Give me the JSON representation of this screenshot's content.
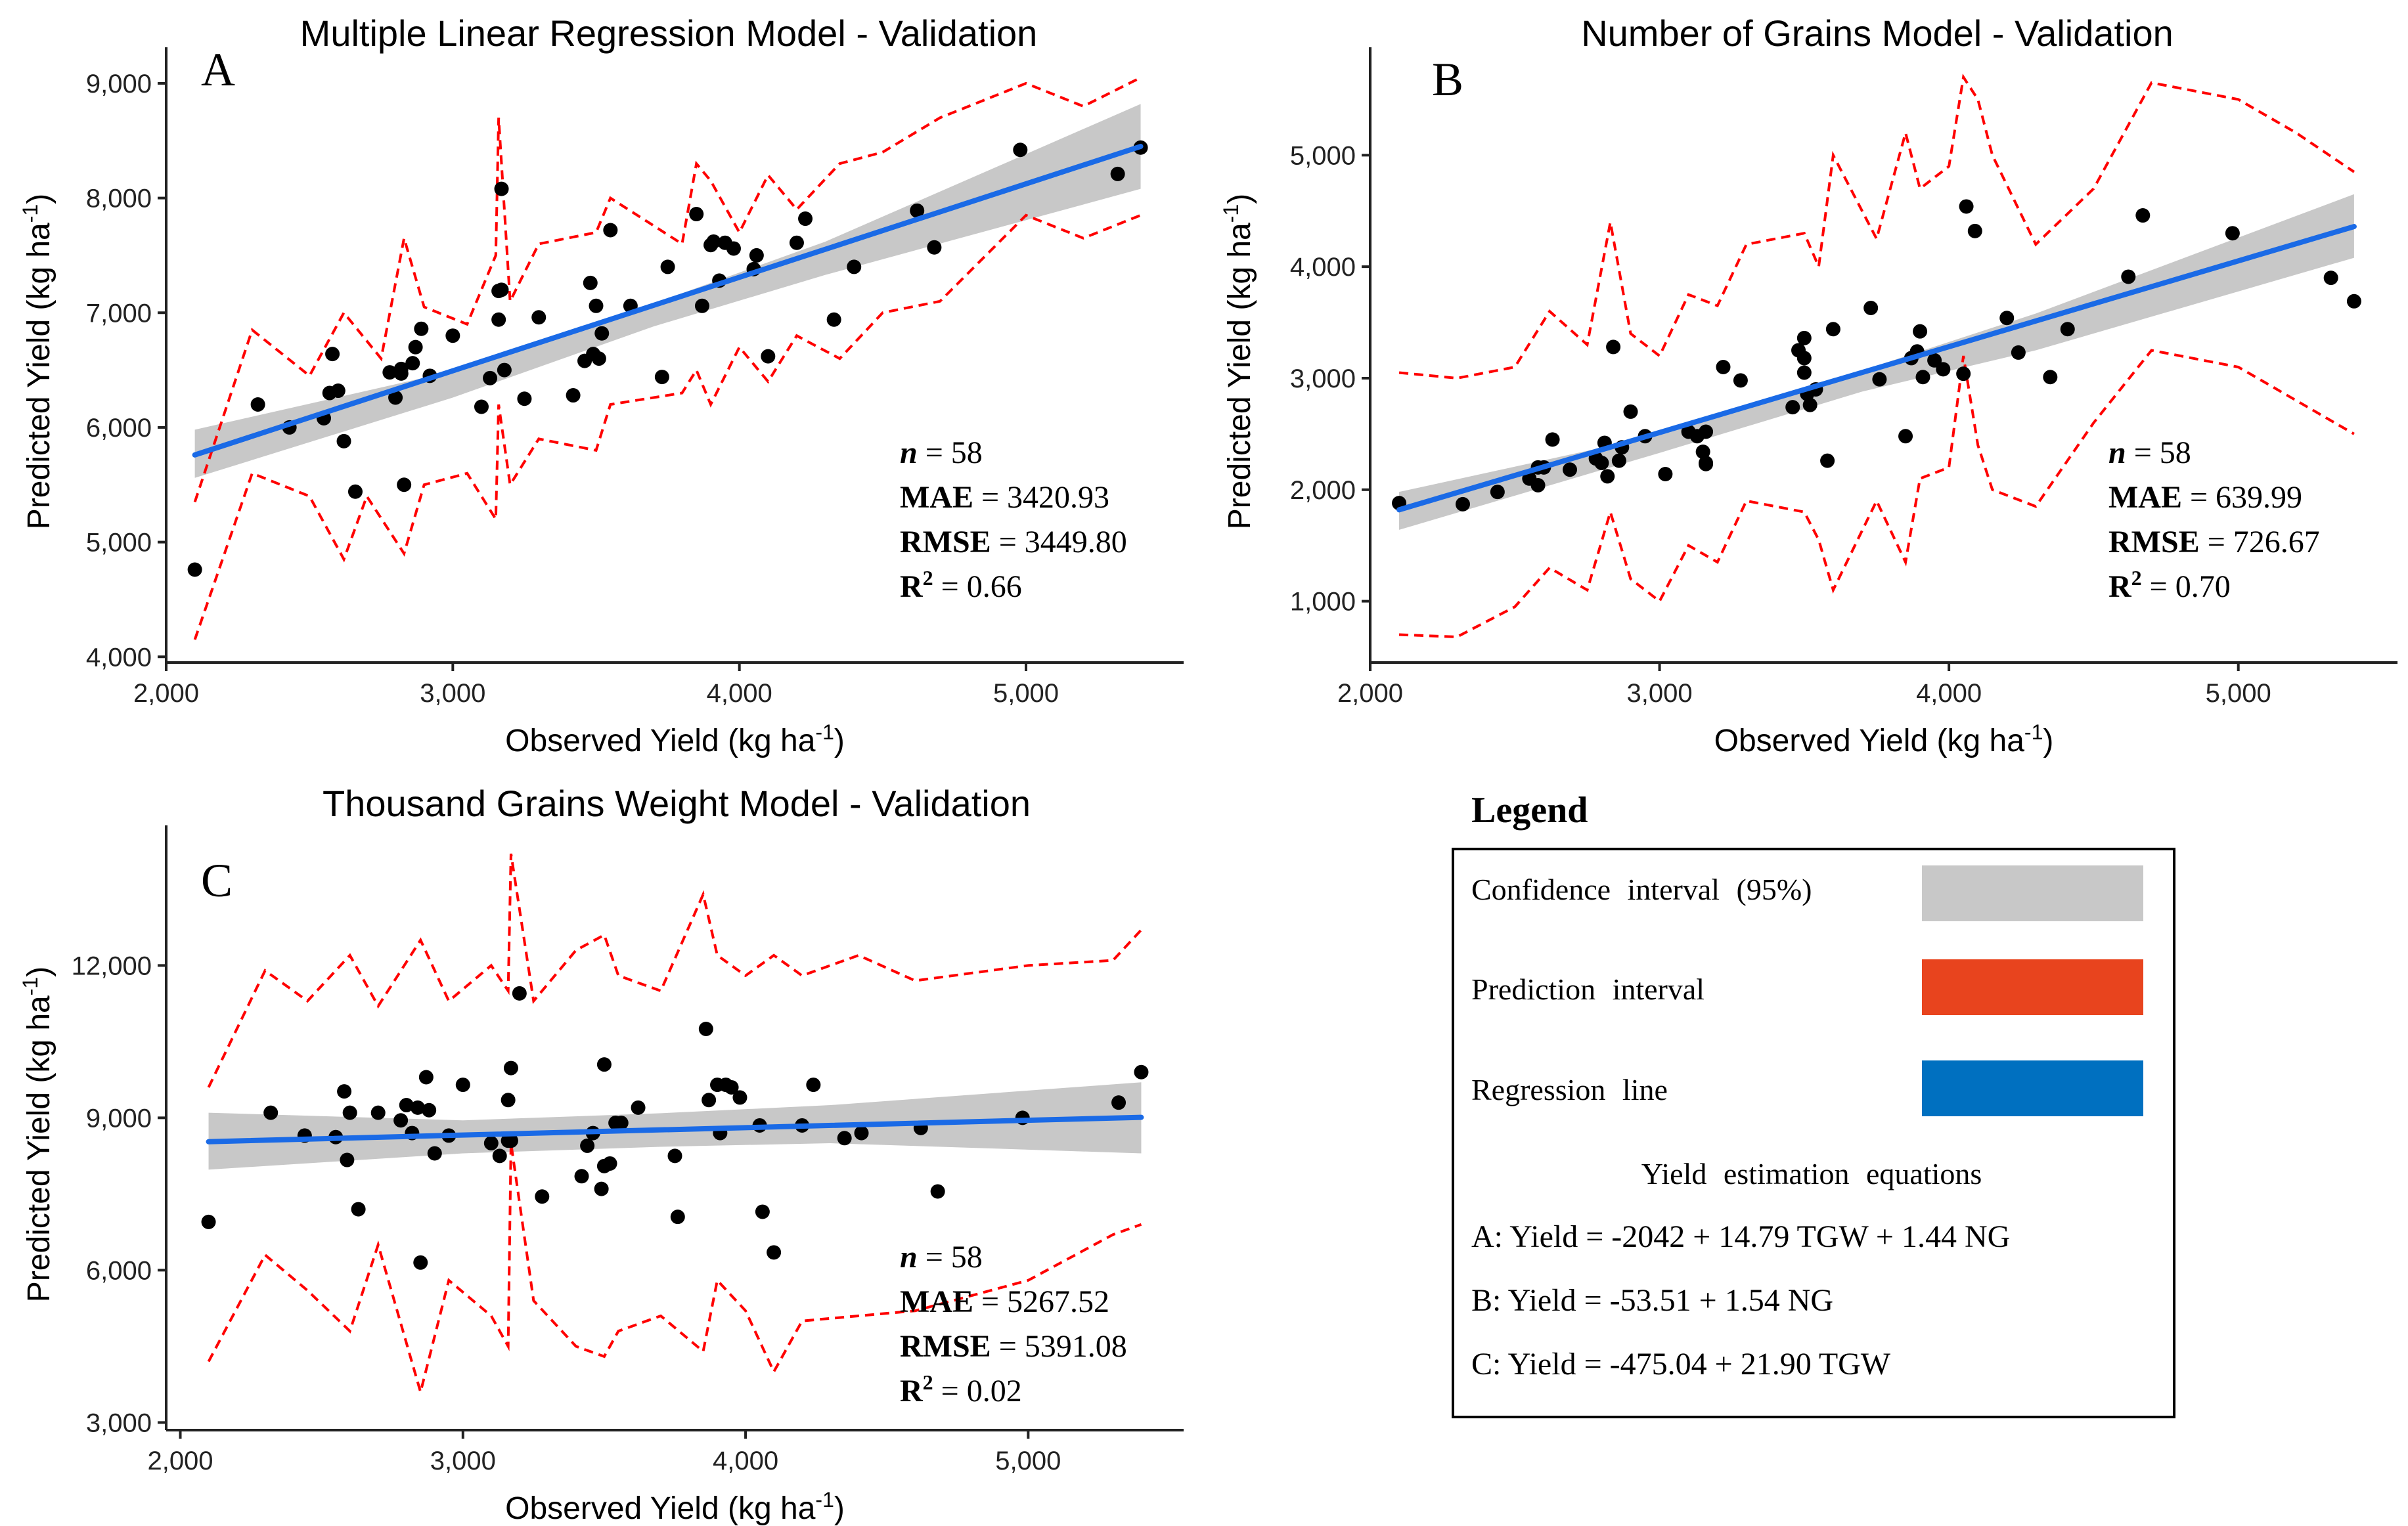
{
  "colors": {
    "confidence": "#c8c8c8",
    "prediction": "#ff0000",
    "prediction_swatch": "#e8441e",
    "regression": "#1a6ae6",
    "regression_swatch": "#0070c0",
    "points": "#000000",
    "axis": "#222222"
  },
  "chart_data": [
    {
      "type": "scatter",
      "panel_letter": "A",
      "title": "Multiple Linear Regression Model - Validation",
      "xlabel": "Observed Yield (kg ha",
      "xlabel_sup": "-1",
      "xlabel_end": ")",
      "ylabel": "Predicted Yield (kg ha",
      "ylabel_sup": "-1",
      "ylabel_end": ")",
      "xlim": [
        2000,
        5550
      ],
      "ylim": [
        3950,
        9200
      ],
      "xticks": [
        2000,
        3000,
        4000,
        5000
      ],
      "xtick_labels": [
        "2,000",
        "3,000",
        "4,000",
        "5,000"
      ],
      "yticks": [
        4000,
        5000,
        6000,
        7000,
        8000,
        9000
      ],
      "ytick_labels": [
        "4,000",
        "5,000",
        "6,000",
        "7,000",
        "8,000",
        "9,000"
      ],
      "regression": {
        "x": [
          2100,
          5400
        ],
        "y": [
          5760,
          8450
        ]
      },
      "ci_band": {
        "x": [
          2100,
          3000,
          3700,
          4300,
          5400
        ],
        "lower": [
          5560,
          6260,
          6880,
          7330,
          8080
        ],
        "upper": [
          5980,
          6490,
          7080,
          7620,
          8820
        ]
      },
      "pi_upper": {
        "x": [
          2100,
          2300,
          2500,
          2620,
          2750,
          2830,
          2900,
          3050,
          3150,
          3160,
          3200,
          3300,
          3500,
          3550,
          3800,
          3850,
          3900,
          4000,
          4100,
          4200,
          4350,
          4500,
          4700,
          5000,
          5200,
          5400
        ],
        "y": [
          5350,
          6850,
          6450,
          7000,
          6600,
          7650,
          7050,
          6900,
          7500,
          8700,
          7100,
          7600,
          7700,
          8000,
          7600,
          8300,
          8150,
          7700,
          8200,
          7900,
          8300,
          8400,
          8700,
          9000,
          8800,
          9050
        ]
      },
      "pi_lower": {
        "x": [
          2100,
          2300,
          2500,
          2620,
          2700,
          2830,
          2900,
          3050,
          3150,
          3160,
          3200,
          3300,
          3500,
          3550,
          3800,
          3850,
          3900,
          4000,
          4100,
          4200,
          4350,
          4500,
          4700,
          5000,
          5200,
          5400
        ],
        "y": [
          4150,
          5600,
          5400,
          4850,
          5400,
          4900,
          5500,
          5600,
          5200,
          6200,
          5500,
          5900,
          5800,
          6200,
          6300,
          6500,
          6200,
          6700,
          6400,
          6800,
          6600,
          7000,
          7100,
          7850,
          7650,
          7850
        ]
      },
      "points": {
        "x": [
          2100,
          2320,
          2430,
          2550,
          2580,
          2600,
          2620,
          2660,
          2780,
          2800,
          2820,
          2830,
          2860,
          2870,
          2890,
          2920,
          3000,
          3100,
          3130,
          3160,
          3160,
          3170,
          3180,
          3250,
          3300,
          3420,
          3460,
          3480,
          3490,
          3500,
          3520,
          3550,
          3620,
          3730,
          3750,
          3850,
          3870,
          3900,
          3910,
          3950,
          3980,
          4050,
          4060,
          4100,
          4200,
          4230,
          4330,
          4400,
          4620,
          4680,
          4980,
          5320,
          5400,
          2570,
          2820,
          3510,
          3170,
          3930
        ],
        "y": [
          4760,
          6200,
          6000,
          6080,
          6640,
          6320,
          5880,
          5440,
          6480,
          6260,
          6470,
          5500,
          6560,
          6700,
          6860,
          6450,
          6800,
          6180,
          6430,
          6940,
          7190,
          8080,
          6500,
          6250,
          6960,
          6280,
          6580,
          7260,
          6640,
          7060,
          6820,
          7720,
          7060,
          6440,
          7400,
          7860,
          7060,
          7590,
          7620,
          7610,
          7560,
          7380,
          7500,
          6620,
          7610,
          7820,
          6940,
          7400,
          7890,
          7570,
          8420,
          8210,
          8440,
          6300,
          6510,
          6600,
          7200,
          7280
        ]
      },
      "stats": {
        "n": "58",
        "mae": "3420.93",
        "rmse": "3449.80",
        "r2": "0.66"
      }
    },
    {
      "type": "scatter",
      "panel_letter": "B",
      "title": "Number of Grains Model - Validation",
      "xlabel": "Observed Yield (kg ha",
      "xlabel_sup": "-1",
      "xlabel_end": ")",
      "ylabel": "Predicted Yield (kg ha",
      "ylabel_sup": "-1",
      "ylabel_end": ")",
      "xlim": [
        2000,
        5550
      ],
      "ylim": [
        450,
        5850
      ],
      "xticks": [
        2000,
        3000,
        4000,
        5000
      ],
      "xtick_labels": [
        "2,000",
        "3,000",
        "4,000",
        "5,000"
      ],
      "yticks": [
        1000,
        2000,
        3000,
        4000,
        5000
      ],
      "ytick_labels": [
        "1,000",
        "2,000",
        "3,000",
        "4,000",
        "5,000"
      ],
      "regression": {
        "x": [
          2100,
          5400
        ],
        "y": [
          1820,
          4360
        ]
      },
      "ci_band": {
        "x": [
          2100,
          3000,
          3700,
          4300,
          5400
        ],
        "lower": [
          1640,
          2330,
          2880,
          3250,
          4080
        ],
        "upper": [
          1980,
          2490,
          3070,
          3580,
          4650
        ]
      },
      "pi_upper": {
        "x": [
          2100,
          2300,
          2500,
          2620,
          2750,
          2830,
          2900,
          3000,
          3100,
          3200,
          3300,
          3500,
          3550,
          3600,
          3750,
          3850,
          3900,
          4000,
          4050,
          4100,
          4150,
          4300,
          4500,
          4700,
          5000,
          5200,
          5400
        ],
        "y": [
          3050,
          3000,
          3100,
          3600,
          3300,
          4400,
          3400,
          3200,
          3750,
          3650,
          4200,
          4300,
          4000,
          5000,
          4250,
          5200,
          4700,
          4900,
          5700,
          5500,
          5000,
          4200,
          4700,
          5650,
          5500,
          5200,
          4850
        ]
      },
      "pi_lower": {
        "x": [
          2100,
          2300,
          2500,
          2620,
          2750,
          2830,
          2900,
          3000,
          3100,
          3200,
          3300,
          3500,
          3550,
          3600,
          3750,
          3850,
          3900,
          4000,
          4050,
          4100,
          4150,
          4300,
          4500,
          4700,
          5000,
          5200,
          5400
        ],
        "y": [
          700,
          680,
          950,
          1300,
          1100,
          1800,
          1200,
          1000,
          1500,
          1350,
          1900,
          1800,
          1550,
          1100,
          1900,
          1350,
          2100,
          2200,
          3200,
          2400,
          2000,
          1850,
          2600,
          3250,
          3100,
          2800,
          2500
        ]
      },
      "points": {
        "x": [
          2100,
          2320,
          2440,
          2550,
          2580,
          2600,
          2630,
          2690,
          2780,
          2800,
          2820,
          2840,
          2860,
          2870,
          2900,
          2950,
          3020,
          3100,
          3130,
          3150,
          3160,
          3160,
          3220,
          3280,
          3460,
          3480,
          3500,
          3500,
          3510,
          3520,
          3580,
          3600,
          3730,
          3760,
          3850,
          3870,
          3900,
          3910,
          3950,
          3980,
          4050,
          4060,
          4090,
          4200,
          4240,
          4350,
          4410,
          4620,
          4670,
          4980,
          5320,
          5400,
          2580,
          2810,
          3160,
          3540,
          3890,
          3500
        ],
        "y": [
          1880,
          1870,
          1980,
          2100,
          2040,
          2200,
          2450,
          2180,
          2280,
          2240,
          2120,
          3280,
          2260,
          2380,
          2700,
          2480,
          2140,
          2520,
          2480,
          2340,
          2520,
          2230,
          3100,
          2980,
          2740,
          3250,
          3180,
          3360,
          2860,
          2760,
          2260,
          3440,
          3630,
          2990,
          2480,
          3180,
          3420,
          3010,
          3160,
          3080,
          3040,
          4540,
          4320,
          3540,
          3230,
          3010,
          3440,
          3910,
          4460,
          4300,
          3900,
          3690,
          2200,
          2420,
          2240,
          2900,
          3240,
          3050
        ]
      },
      "stats": {
        "n": "58",
        "mae": "639.99",
        "rmse": "726.67",
        "r2": "0.70"
      }
    },
    {
      "type": "scatter",
      "panel_letter": "C",
      "title": "Thousand Grains Weight Model - Validation",
      "xlabel": "Observed Yield (kg ha",
      "xlabel_sup": "-1",
      "xlabel_end": ")",
      "ylabel": "Predicted Yield (kg ha",
      "ylabel_sup": "-1",
      "ylabel_end": ")",
      "xlim": [
        1950,
        5550
      ],
      "ylim": [
        2850,
        14500
      ],
      "xticks": [
        2000,
        3000,
        4000,
        5000
      ],
      "xtick_labels": [
        "2,000",
        "3,000",
        "4,000",
        "5,000"
      ],
      "yticks": [
        3000,
        6000,
        9000,
        12000
      ],
      "ytick_labels": [
        "3,000",
        "6,000",
        "9,000",
        "12,000"
      ],
      "regression": {
        "x": [
          2100,
          5400
        ],
        "y": [
          8530,
          9010
        ]
      },
      "ci_band": {
        "x": [
          2100,
          3000,
          3700,
          4300,
          5400
        ],
        "lower": [
          7980,
          8300,
          8430,
          8500,
          8300
        ],
        "upper": [
          9100,
          8950,
          9090,
          9250,
          9700
        ]
      },
      "pi_upper": {
        "x": [
          2100,
          2300,
          2450,
          2600,
          2700,
          2850,
          2950,
          3100,
          3160,
          3170,
          3250,
          3400,
          3500,
          3550,
          3700,
          3850,
          3900,
          4000,
          4100,
          4200,
          4400,
          4600,
          5000,
          5300,
          5400
        ],
        "y": [
          9600,
          11900,
          11300,
          12200,
          11200,
          12500,
          11300,
          12000,
          11500,
          14200,
          11300,
          12300,
          12600,
          11800,
          11500,
          13400,
          12200,
          11800,
          12200,
          11800,
          12200,
          11700,
          12000,
          12100,
          12700
        ]
      },
      "pi_lower": {
        "x": [
          2100,
          2300,
          2450,
          2600,
          2700,
          2850,
          2950,
          3100,
          3160,
          3170,
          3250,
          3400,
          3500,
          3550,
          3700,
          3850,
          3900,
          4000,
          4100,
          4200,
          4400,
          4600,
          5000,
          5300,
          5400
        ],
        "y": [
          4200,
          6300,
          5600,
          4800,
          6500,
          3600,
          5800,
          5100,
          4500,
          8500,
          5400,
          4500,
          4300,
          4800,
          5100,
          4400,
          5800,
          5200,
          4000,
          5000,
          5100,
          5200,
          5800,
          6700,
          6900
        ]
      },
      "points": {
        "x": [
          2100,
          2320,
          2440,
          2550,
          2580,
          2600,
          2630,
          2700,
          2780,
          2800,
          2820,
          2850,
          2870,
          2880,
          2900,
          2950,
          3000,
          3100,
          3130,
          3160,
          3160,
          3170,
          3200,
          3280,
          3420,
          3440,
          3460,
          3490,
          3500,
          3520,
          3560,
          3620,
          3750,
          3760,
          3860,
          3870,
          3900,
          3910,
          3950,
          3980,
          4050,
          4060,
          4100,
          4200,
          4240,
          4350,
          4410,
          4620,
          4680,
          4980,
          5320,
          5400,
          2590,
          2840,
          3170,
          3540,
          3930,
          3500
        ],
        "y": [
          6950,
          9100,
          8650,
          8620,
          9520,
          9100,
          7200,
          9100,
          8950,
          9250,
          8700,
          6150,
          9800,
          9150,
          8300,
          8650,
          9650,
          8500,
          8250,
          8550,
          9350,
          9980,
          11450,
          7450,
          7850,
          8450,
          8700,
          7600,
          10050,
          8100,
          8900,
          9200,
          8250,
          7050,
          10750,
          9350,
          9650,
          8700,
          9600,
          9400,
          8850,
          7150,
          6350,
          8850,
          9650,
          8600,
          8700,
          8800,
          7550,
          9000,
          9300,
          9900,
          8170,
          9200,
          8550,
          8900,
          9650,
          8050
        ]
      },
      "stats": {
        "n": "58",
        "mae": "5267.52",
        "rmse": "5391.08",
        "r2": "0.02"
      }
    }
  ],
  "legend": {
    "title": "Legend",
    "items": [
      {
        "label": "Confidence interval (95%)"
      },
      {
        "label": "Prediction interval"
      },
      {
        "label": "Regression line"
      }
    ],
    "equations_title": "Yield estimation equations",
    "equations": [
      "A: Yield = -2042 + 14.79 TGW + 1.44 NG",
      "B: Yield = -53.51 + 1.54 NG",
      "C: Yield = -475.04 + 21.90 TGW"
    ]
  },
  "stat_labels": {
    "n": "n",
    "mae": "MAE",
    "rmse": "RMSE",
    "r2": "R",
    "r2_sup": "2",
    "eq": " = "
  }
}
